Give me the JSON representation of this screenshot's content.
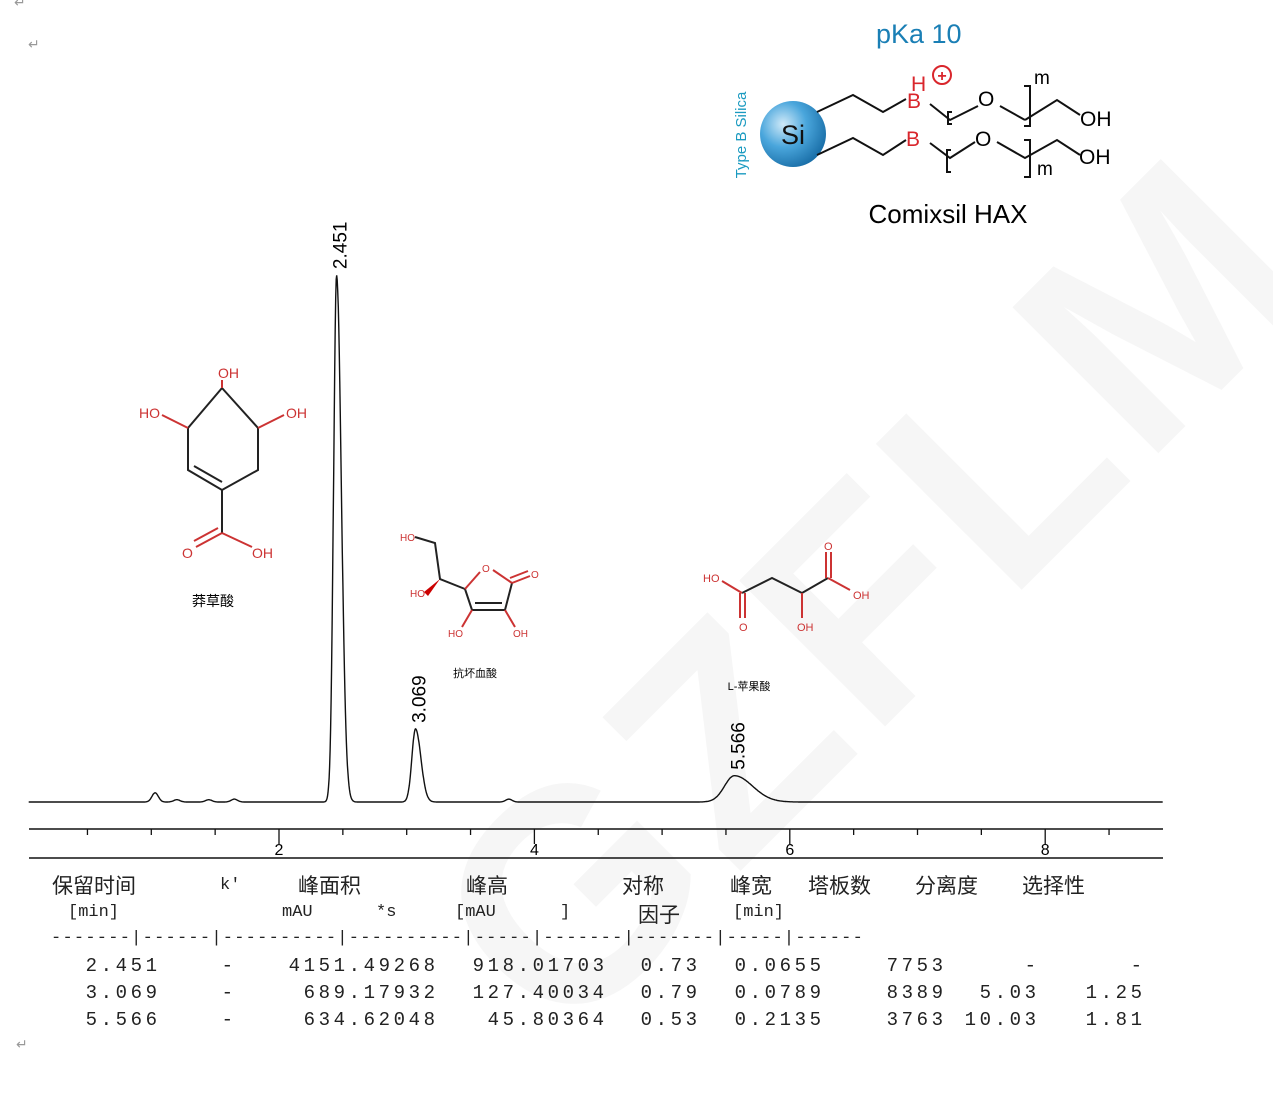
{
  "paragraph_mark": "↵",
  "watermark": "GZFLM",
  "column_structure": {
    "pka_label": "pKa 10",
    "pka_prefix": "p",
    "pka_k": "K",
    "pka_rest": "a 10",
    "silica_label": "Type B Silica",
    "core_label": "Si",
    "name": "Comixsil HAX",
    "atoms": {
      "h": "H",
      "plus": "+",
      "b": "B",
      "o": "O",
      "m": "m",
      "oh": "OH"
    },
    "colors": {
      "blue": "#1a7fb5",
      "red": "#d9262c"
    }
  },
  "compounds": [
    {
      "name": "莽草酸",
      "atoms": [
        "OH",
        "HO",
        "OH",
        "O",
        "OH"
      ]
    },
    {
      "name": "抗坏血酸",
      "atoms": [
        "HO",
        "HO",
        "O",
        "O",
        "HO",
        "OH"
      ]
    },
    {
      "name": "L-苹果酸",
      "atoms": [
        "HO",
        "O",
        "O",
        "OH",
        "OH"
      ]
    }
  ],
  "chart_data": {
    "type": "line",
    "title": "",
    "xlabel": "",
    "ylabel": "",
    "x_unit": "min",
    "xlim": [
      0.04,
      8.92
    ],
    "ylim": [
      -20,
      920
    ],
    "x_ticks": [
      2,
      4,
      6,
      8
    ],
    "x_tick_labels": [
      "2",
      "4",
      "6",
      "8"
    ],
    "grid": false,
    "line_color": "#111111",
    "peaks": [
      {
        "label": "2.451",
        "rt": 2.451,
        "height": 918.01703,
        "width": 0.0655,
        "symmetry": 0.73
      },
      {
        "label": "3.069",
        "rt": 3.069,
        "height": 127.40034,
        "width": 0.0789,
        "symmetry": 0.79
      },
      {
        "label": "5.566",
        "rt": 5.566,
        "height": 45.80364,
        "width": 0.2135,
        "symmetry": 0.53
      }
    ],
    "unlabeled_peaks": [
      {
        "rt": 1.03,
        "height": 16
      },
      {
        "rt": 1.2,
        "height": 4
      },
      {
        "rt": 1.45,
        "height": 4
      },
      {
        "rt": 1.65,
        "height": 5
      },
      {
        "rt": 3.8,
        "height": 5
      }
    ]
  },
  "table": {
    "headers": [
      "保留时间",
      "k'",
      "峰面积",
      "峰高",
      "对称",
      "峰宽",
      "塔板数",
      "分离度",
      "选择性"
    ],
    "units": [
      "[min]",
      "mAU",
      "*s",
      "[mAU",
      "]",
      "因子",
      "[min]"
    ],
    "separator": "-------|------|----------|----------|-----|-------|-------|-----|------",
    "rows": [
      [
        "2.451",
        "-",
        "4151.49268",
        "918.01703",
        "0.73",
        "0.0655",
        "7753",
        "-",
        "-"
      ],
      [
        "3.069",
        "-",
        "689.17932",
        "127.40034",
        "0.79",
        "0.0789",
        "8389",
        "5.03",
        "1.25"
      ],
      [
        "5.566",
        "-",
        "634.62048",
        "45.80364",
        "0.53",
        "0.2135",
        "3763",
        "10.03",
        "1.81"
      ]
    ]
  }
}
